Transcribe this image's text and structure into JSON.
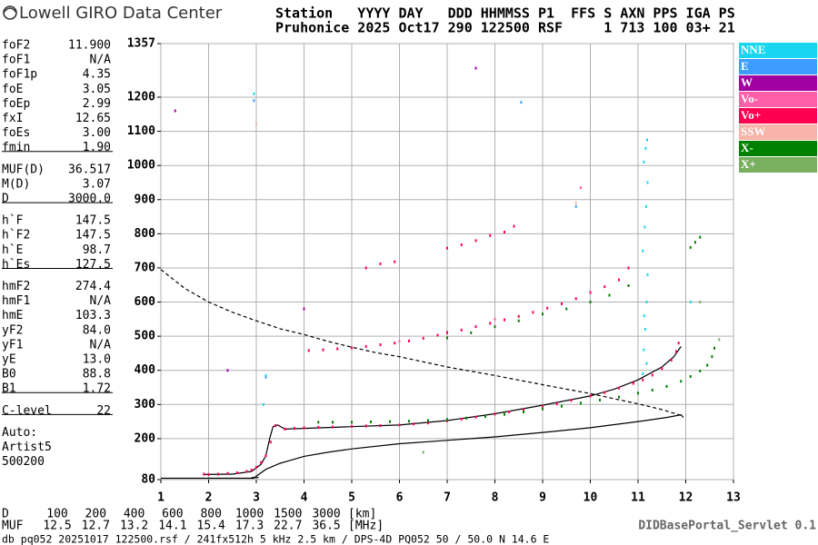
{
  "header": {
    "logo": "Lowell GIRO Data Center",
    "line1": "Station   YYYY DAY   DDD HHMMSS P1  FFS S AXN PPS IGA PS",
    "line2": "Pruhonice 2025 Oct17 290 122500 RSF     1 713 100 03+ 21"
  },
  "params": [
    [
      [
        "foF2",
        "11.900"
      ],
      [
        "foF1",
        "N/A"
      ],
      [
        "foF1p",
        "4.35"
      ],
      [
        "foE",
        "3.05"
      ],
      [
        "foEp",
        "2.99"
      ],
      [
        "fxI",
        "12.65"
      ],
      [
        "foEs",
        "3.00"
      ],
      [
        "fmin",
        "1.90"
      ]
    ],
    [
      [
        "MUF(D)",
        "36.517"
      ],
      [
        "M(D)",
        "3.07"
      ],
      [
        "D",
        "3000.0"
      ]
    ],
    [
      [
        "h`F",
        "147.5"
      ],
      [
        "h`F2",
        "147.5"
      ],
      [
        "h`E",
        "98.7"
      ],
      [
        "h`Es",
        "127.5"
      ]
    ],
    [
      [
        "hmF2",
        "274.4"
      ],
      [
        "hmF1",
        "N/A"
      ],
      [
        "hmE",
        "103.3"
      ],
      [
        "yF2",
        "84.0"
      ],
      [
        "yF1",
        "N/A"
      ],
      [
        "yE",
        "13.0"
      ],
      [
        "B0",
        "88.8"
      ],
      [
        "B1",
        "1.72"
      ]
    ],
    [
      [
        "C-level",
        "22"
      ]
    ]
  ],
  "auto": [
    "Auto:",
    "Artist5",
    "500200"
  ],
  "distance_table": {
    "d_label": "D",
    "d_values": [
      100,
      200,
      400,
      600,
      800,
      1000,
      1500,
      3000
    ],
    "d_unit": "[km]",
    "muf_label": "MUF",
    "muf_values": [
      12.5,
      12.7,
      13.2,
      14.1,
      15.4,
      17.3,
      22.7,
      36.5
    ],
    "muf_unit": "[MHz]"
  },
  "servlet": "DIDBasePortal_Servlet 0.1",
  "footer": "db pq052 20251017 122500.rsf / 241fx512h 5 kHz 2.5 km / DPS-4D PQ052 50 / 50.0 N 14.6 E",
  "chart_data": {
    "type": "scatter",
    "xlim": [
      1,
      13
    ],
    "xticks": [
      1,
      2,
      3,
      4,
      5,
      6,
      7,
      8,
      9,
      10,
      11,
      12,
      13
    ],
    "ylim": [
      80,
      1357
    ],
    "yticks": [
      80,
      200,
      300,
      400,
      500,
      600,
      700,
      800,
      900,
      1000,
      1100,
      1200,
      1357
    ],
    "grid": true,
    "legend": "right",
    "series": [
      {
        "name": "NNE",
        "color": "#18d6f0",
        "x": [
          11.1,
          11.12,
          11.15,
          11.18,
          11.2,
          11.1,
          11.14,
          11.17,
          11.2,
          11.12,
          11.16,
          11.19,
          11.13,
          11.18,
          3.2,
          3.15,
          2.95,
          12.1
        ],
        "values": [
          390,
          460,
          520,
          600,
          680,
          750,
          820,
          880,
          950,
          1010,
          1050,
          1075,
          560,
          420,
          385,
          300,
          1210,
          600
        ]
      },
      {
        "name": "E",
        "color": "#3c9cff",
        "x": [
          2.95,
          8.55,
          3.2,
          9.7
        ],
        "values": [
          1190,
          1185,
          380,
          880
        ]
      },
      {
        "name": "W",
        "color": "#a000a0",
        "x": [
          1.3,
          2.4,
          7.6,
          4.0
        ],
        "values": [
          1160,
          400,
          1285,
          580
        ]
      },
      {
        "name": "Vo-",
        "color": "#ff5fa8",
        "x": [
          6.0,
          7.0,
          8.0,
          9.8
        ],
        "values": [
          485,
          512,
          550,
          935
        ]
      },
      {
        "name": "Vo+",
        "color": "#ff0050",
        "x": [
          1.9,
          2.0,
          2.2,
          2.4,
          2.6,
          2.8,
          2.9,
          3.0,
          3.1,
          3.2,
          3.3,
          3.4,
          3.6,
          3.8,
          4.0,
          4.3,
          4.6,
          5.0,
          5.3,
          5.6,
          6.0,
          6.3,
          6.6,
          7.0,
          7.3,
          7.6,
          8.0,
          8.3,
          8.6,
          9.0,
          9.3,
          9.6,
          10.0,
          10.3,
          10.6,
          10.9,
          11.1,
          11.3,
          11.5,
          11.7,
          11.8,
          11.85,
          4.1,
          4.4,
          4.7,
          5.0,
          5.3,
          5.6,
          5.9,
          6.2,
          6.5,
          6.8,
          7.0,
          7.3,
          7.6,
          7.9,
          8.2,
          8.5,
          8.8,
          9.1,
          9.4,
          9.7,
          10.0,
          10.3,
          10.6,
          10.8,
          5.3,
          5.6,
          5.9,
          7.0,
          7.3,
          7.6,
          7.9,
          8.2,
          8.4
        ],
        "values": [
          96,
          95,
          96,
          98,
          100,
          104,
          108,
          116,
          130,
          150,
          190,
          238,
          228,
          230,
          232,
          233,
          234,
          236,
          237,
          238,
          240,
          243,
          246,
          252,
          257,
          263,
          272,
          278,
          285,
          295,
          302,
          312,
          325,
          335,
          348,
          362,
          372,
          386,
          405,
          430,
          455,
          480,
          458,
          460,
          463,
          466,
          470,
          475,
          480,
          486,
          494,
          503,
          510,
          518,
          528,
          538,
          548,
          558,
          570,
          582,
          595,
          610,
          628,
          645,
          665,
          700,
          700,
          712,
          718,
          758,
          768,
          780,
          795,
          805,
          822
        ]
      },
      {
        "name": "SSW",
        "color": "#f8b4a8",
        "x": [
          3.0,
          9.7
        ],
        "values": [
          1120,
          890
        ]
      },
      {
        "name": "X-",
        "color": "#008000",
        "x": [
          4.3,
          4.6,
          5.0,
          5.4,
          5.8,
          6.2,
          6.6,
          7.0,
          7.4,
          7.8,
          8.2,
          8.6,
          9.0,
          9.4,
          9.8,
          10.2,
          10.6,
          11.0,
          11.3,
          11.6,
          11.9,
          12.1,
          12.3,
          12.45,
          12.55,
          12.6,
          7.0,
          7.5,
          8.0,
          8.5,
          9.0,
          9.5,
          10.0,
          10.4,
          10.8,
          12.1,
          12.2,
          12.3
        ],
        "values": [
          248,
          248,
          248,
          249,
          250,
          251,
          253,
          256,
          260,
          265,
          271,
          278,
          287,
          295,
          304,
          313,
          322,
          333,
          342,
          353,
          368,
          382,
          398,
          415,
          440,
          465,
          495,
          510,
          528,
          545,
          565,
          580,
          600,
          620,
          648,
          760,
          775,
          790
        ]
      },
      {
        "name": "X+",
        "color": "#78b060",
        "x": [
          12.7,
          12.3,
          6.5
        ],
        "values": [
          490,
          600,
          160
        ]
      }
    ],
    "lines": [
      {
        "color": "#000000",
        "dash": false,
        "x": [
          1.9,
          2.5,
          2.9,
          3.1,
          3.2,
          3.28,
          3.35,
          3.45,
          3.6,
          4.0,
          5.0,
          6.0,
          7.0,
          8.0,
          9.0,
          10.0,
          10.5,
          11.0,
          11.5,
          11.75,
          11.9
        ],
        "values": [
          95,
          96,
          104,
          125,
          150,
          200,
          235,
          240,
          228,
          230,
          235,
          240,
          253,
          273,
          298,
          325,
          345,
          372,
          410,
          440,
          470
        ]
      },
      {
        "color": "#000000",
        "dash": false,
        "x": [
          1,
          2,
          2.95,
          3.0,
          3.2,
          3.5,
          4.0,
          4.5,
          5.0,
          6.0,
          7.0,
          8.0,
          9.0,
          10.0,
          11.0,
          11.6,
          11.9,
          11.95
        ],
        "values": [
          84,
          84,
          84,
          90,
          110,
          128,
          148,
          160,
          170,
          185,
          195,
          205,
          218,
          232,
          250,
          262,
          270,
          262
        ]
      },
      {
        "color": "#000000",
        "dash": false,
        "x": [
          2.9,
          3.05
        ],
        "values": [
          86,
          86
        ]
      },
      {
        "color": "#000000",
        "dash": true,
        "x": [
          1,
          1.5,
          2,
          2.5,
          3,
          3.5,
          4,
          4.5,
          5,
          5.5,
          6,
          7,
          8,
          9,
          10,
          11,
          11.5,
          11.9
        ],
        "values": [
          695,
          640,
          600,
          570,
          545,
          522,
          505,
          485,
          468,
          452,
          440,
          410,
          385,
          358,
          332,
          302,
          285,
          268
        ]
      }
    ]
  }
}
